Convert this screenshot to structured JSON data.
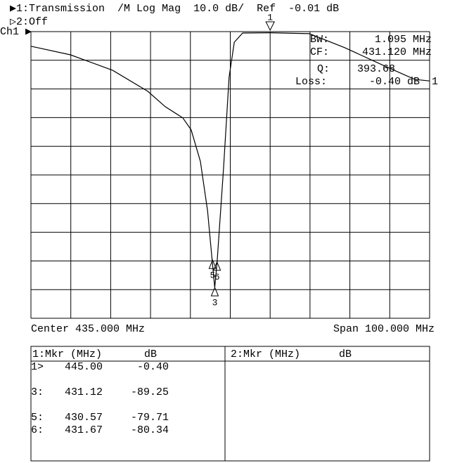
{
  "header": {
    "channel1": "▶1:Transmission  /M Log Mag  10.0 dB/  Ref  -0.01 dB",
    "channel2": "▷2:Off",
    "channel_tag": "Ch1 ▶"
  },
  "info": {
    "bw_label": "BW:",
    "bw_value": "1.095 MHz",
    "cf_label": "CF:",
    "cf_value": "431.120 MHz",
    "q_label": "Q:",
    "q_value": "393.68",
    "loss_label": "Loss:",
    "loss_value": "-0.40 dB",
    "loss_marker": "1"
  },
  "trace": {
    "xlim": [
      385,
      485
    ],
    "ylim": [
      -100,
      0
    ],
    "x": [
      385,
      394.9,
      405.5,
      414.3,
      418.7,
      423.1,
      425.2,
      427.5,
      429.3,
      430.5,
      431.1,
      431.7,
      433.3,
      434.7,
      436,
      438.1,
      445,
      454.8,
      463.7,
      474.2,
      481.3,
      485
    ],
    "y": [
      -5.1,
      -8.1,
      -13.5,
      -20.8,
      -26.2,
      -30.1,
      -34.3,
      -45.3,
      -62.5,
      -80.5,
      -89.3,
      -80.3,
      -47.8,
      -15.9,
      -3.7,
      -0.5,
      -0.4,
      -0.7,
      -5.6,
      -12.3,
      -16.7,
      -17.2
    ]
  },
  "markers": [
    {
      "id": "1",
      "freq": 445.0,
      "db": -0.4
    },
    {
      "id": "3",
      "freq": 431.12,
      "db": -89.25
    },
    {
      "id": "5",
      "freq": 430.57,
      "db": -79.71
    },
    {
      "id": "6",
      "freq": 431.67,
      "db": -80.34
    }
  ],
  "footer": {
    "center": "Center 435.000 MHz",
    "span": "Span 100.000 MHz"
  },
  "table": {
    "left_header": [
      "1:Mkr (MHz)",
      "dB"
    ],
    "right_header": [
      "2:Mkr (MHz)",
      "dB"
    ],
    "rows": [
      [
        "1>",
        "445.00",
        "-0.40"
      ],
      [
        "3:",
        "431.12",
        "-89.25"
      ],
      [
        "5:",
        "430.57",
        "-79.71"
      ],
      [
        "6:",
        "431.67",
        "-80.34"
      ]
    ]
  }
}
